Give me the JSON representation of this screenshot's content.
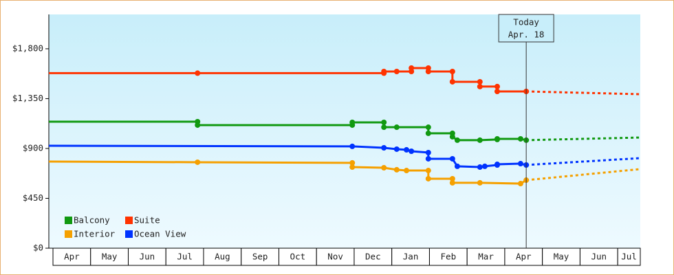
{
  "chart_data": {
    "type": "line",
    "categories": [
      "Apr",
      "May",
      "Jun",
      "Jul",
      "Aug",
      "Sep",
      "Oct",
      "Nov",
      "Dec",
      "Jan",
      "Feb",
      "Mar",
      "Apr",
      "May",
      "Jun",
      "Jul"
    ],
    "xlim": [
      -0.11,
      15.6
    ],
    "ylim": [
      0,
      2110
    ],
    "yticks": [
      {
        "value": 0,
        "label": "$0"
      },
      {
        "value": 450,
        "label": "$450"
      },
      {
        "value": 900,
        "label": "$900"
      },
      {
        "value": 1350,
        "label": "$1,350"
      },
      {
        "value": 1800,
        "label": "$1,800"
      }
    ],
    "today": {
      "x": 12.57,
      "label": [
        "Today",
        "Apr. 18"
      ]
    },
    "series": [
      {
        "name": "Balcony",
        "color": "#119911",
        "x": [
          -0.11,
          3.84,
          3.84,
          7.95,
          7.95,
          8.79,
          8.79,
          9.13,
          9.97,
          9.97,
          10.61,
          10.61,
          10.74,
          11.34,
          11.8,
          11.8,
          12.42,
          12.57
        ],
        "values": [
          1142,
          1142,
          1111,
          1111,
          1136,
          1136,
          1092,
          1092,
          1092,
          1037,
          1037,
          1006,
          975,
          975,
          981,
          987,
          987,
          975
        ],
        "forecast_x": [
          12.57,
          15.6
        ],
        "forecast_values": [
          975,
          999
        ]
      },
      {
        "name": "Suite",
        "color": "#ff3300",
        "x": [
          -0.11,
          3.84,
          8.79,
          8.79,
          9.13,
          9.52,
          9.52,
          9.97,
          9.97,
          10.61,
          10.61,
          11.34,
          11.34,
          11.8,
          11.8,
          12.57
        ],
        "values": [
          1580,
          1580,
          1580,
          1595,
          1595,
          1595,
          1626,
          1626,
          1595,
          1595,
          1502,
          1502,
          1459,
          1459,
          1415,
          1415
        ],
        "forecast_x": [
          12.57,
          15.6
        ],
        "forecast_values": [
          1415,
          1390
        ]
      },
      {
        "name": "Interior",
        "color": "#f5a000",
        "x": [
          -0.11,
          3.84,
          7.95,
          7.95,
          8.79,
          9.13,
          9.39,
          9.97,
          9.97,
          10.61,
          10.61,
          11.34,
          12.42,
          12.57
        ],
        "values": [
          782,
          776,
          770,
          732,
          726,
          708,
          701,
          701,
          627,
          627,
          590,
          590,
          583,
          614
        ],
        "forecast_x": [
          12.57,
          15.6
        ],
        "forecast_values": [
          614,
          714
        ]
      },
      {
        "name": "Ocean View",
        "color": "#0033ff",
        "x": [
          -0.11,
          7.95,
          8.79,
          9.13,
          9.39,
          9.52,
          9.97,
          9.97,
          10.61,
          10.74,
          11.34,
          11.47,
          11.8,
          11.8,
          12.42,
          12.57
        ],
        "values": [
          925,
          919,
          906,
          894,
          888,
          875,
          863,
          807,
          807,
          739,
          732,
          739,
          751,
          757,
          763,
          751
        ],
        "forecast_x": [
          12.57,
          15.6
        ],
        "forecast_values": [
          751,
          813
        ]
      }
    ]
  }
}
